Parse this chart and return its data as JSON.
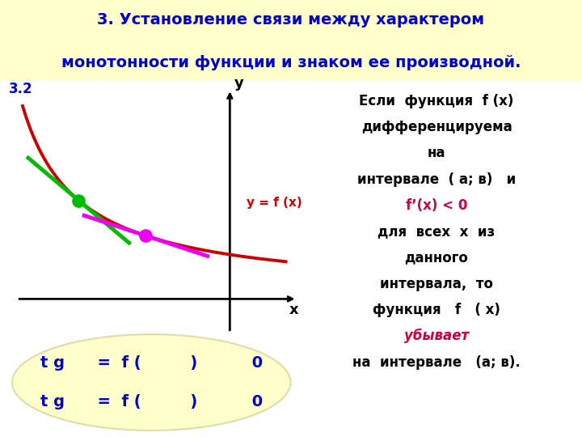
{
  "title_line1": "3. Установление связи между характером",
  "title_line2": "монотонности функции и знаком ее производной.",
  "title_bg": "#ffffcc",
  "title_color": "#0000cc",
  "slide_label": "3.2",
  "right_box_bg": "#ffffcc",
  "right_text_lines": [
    "Если  функция  f (x)",
    "дифференцируема",
    "на",
    "интервале  ( а; в)   и",
    "fʼ(x) < 0",
    "для  всех  x  из",
    "данного",
    "интервала,  то",
    "функция   f   ( x)",
    "убывает",
    "на  интервале   (а; в)."
  ],
  "right_text_colors": [
    "#000000",
    "#000000",
    "#000000",
    "#000000",
    "#cc0044",
    "#000000",
    "#000000",
    "#000000",
    "#000000",
    "#cc0044",
    "#000000"
  ],
  "bottom_box_bg": "#ffffcc",
  "bottom_text1": "t g      =  f (         )          0",
  "bottom_text2": "t g      =  f (         )          0",
  "bottom_text_color": "#0000cc",
  "curve_color": "#cc0000",
  "tangent1_color": "#00bb00",
  "tangent2_color": "#ee00ee",
  "dot1_color": "#00bb00",
  "dot2_color": "#ee00ee",
  "func_label_color": "#cc0000",
  "func_label": "y = f (x)"
}
